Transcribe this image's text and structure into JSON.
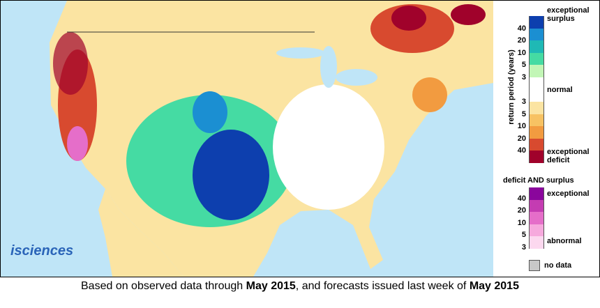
{
  "legend": {
    "title": "return period (years)",
    "exceptional_surplus": "exceptional surplus",
    "normal": "normal",
    "exceptional_deficit": "exceptional deficit",
    "surplus_colors": [
      "#0d3fae",
      "#1b8fd2",
      "#1fb9b5",
      "#45dba3",
      "#c2f6b6"
    ],
    "surplus_ticks": [
      40,
      20,
      10,
      5,
      3
    ],
    "normal_color": "#ffffff",
    "deficit_colors": [
      "#fbe4a2",
      "#f7c263",
      "#f29b40",
      "#d84a2f",
      "#a0022b"
    ],
    "deficit_ticks": [
      3,
      5,
      10,
      20,
      40
    ],
    "both": {
      "title": "deficit AND surplus",
      "top": "exceptional",
      "bottom": "abnormal",
      "colors": [
        "#8a069c",
        "#c43cb2",
        "#e56ec9",
        "#f6a9dd",
        "#fcd8ef"
      ],
      "ticks": [
        40,
        20,
        10,
        5,
        3
      ]
    },
    "no_data": {
      "label": "no data",
      "color": "#c8c8c8"
    }
  },
  "logo": "isciences",
  "caption": {
    "before": "Based on observed data through ",
    "date1": "May 2015",
    "middle": ", and forecasts issued last week of ",
    "date2": "May 2015"
  }
}
